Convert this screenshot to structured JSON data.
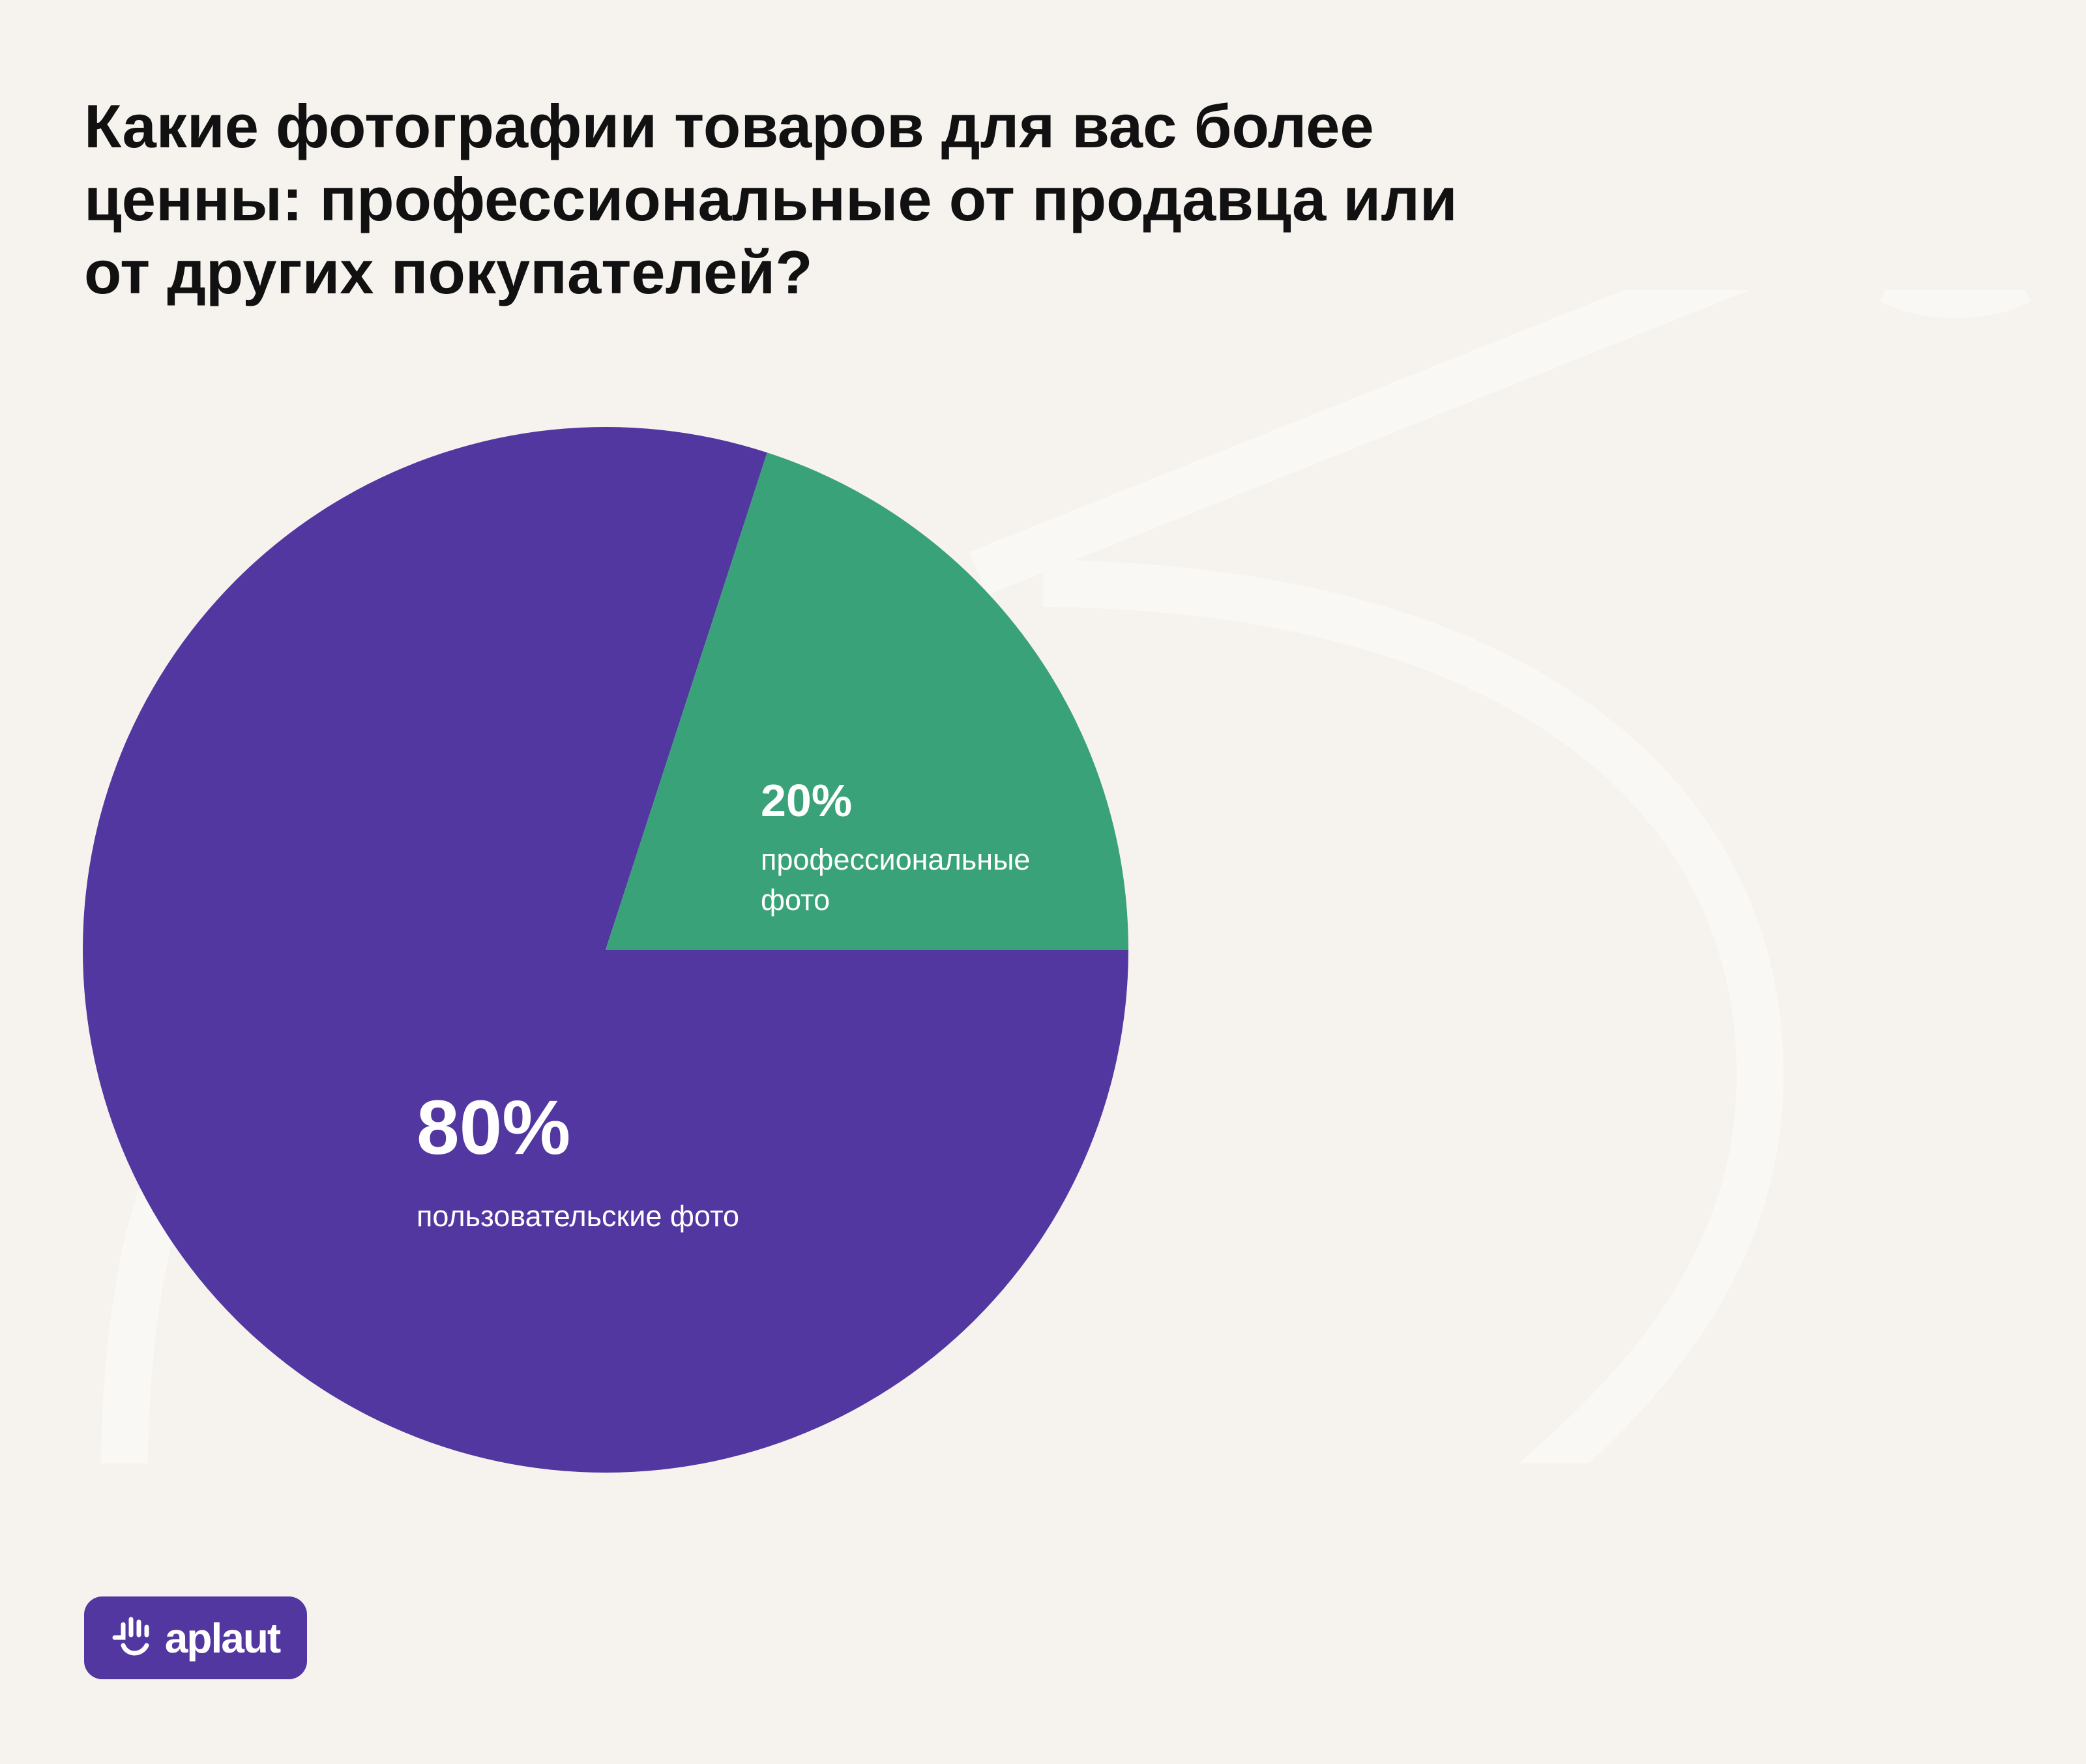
{
  "title": "Какие фотографии товаров для вас более ценны: профессиональные от продавца или от других покупателей?",
  "chart_data": {
    "type": "pie",
    "title": "Какие фотографии товаров для вас более ценны: профессиональные от продавца или от других покупателей?",
    "slices": [
      {
        "label": "пользовательские фото",
        "value": 80,
        "value_label": "80%",
        "color": "#5337a1"
      },
      {
        "label": "профессиональные фото",
        "value": 20,
        "value_label": "20%",
        "color": "#39a278"
      }
    ]
  },
  "logo": {
    "text": "aplaut"
  },
  "colors": {
    "background": "#f6f3ef",
    "decor": "#faf8f4"
  }
}
